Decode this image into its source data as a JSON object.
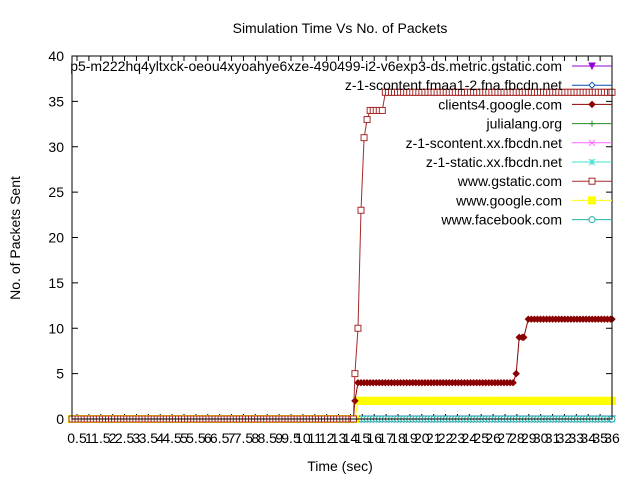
{
  "chart_data": {
    "type": "line",
    "title": "Simulation Time Vs No. of Packets",
    "xlabel": "Time (sec)",
    "ylabel": "No. of Packets Sent",
    "xlim": [
      0.5,
      36
    ],
    "ylim": [
      0,
      40
    ],
    "yticks": [
      0,
      5,
      10,
      15,
      20,
      25,
      30,
      35,
      40
    ],
    "xtick_labels": [
      "0.5",
      "1",
      "1.5",
      "2",
      "2.5",
      "3",
      "3.5",
      "4",
      "4.5",
      "5",
      "5.5",
      "6",
      "6.5",
      "7",
      "7.5",
      "8",
      "8.5",
      "9",
      "9.5",
      "10",
      "11",
      "12",
      "13",
      "14",
      "15",
      "16",
      "17",
      "18",
      "19",
      "20",
      "21",
      "22",
      "23",
      "24",
      "25",
      "26",
      "27",
      "28",
      "29",
      "30",
      "31",
      "32",
      "33",
      "34",
      "35",
      "36"
    ],
    "legend_position": "top-right",
    "grid": false,
    "series": [
      {
        "name": "p5-m222hq4yltxck-oeou4xyoahye6xze-490499-i2-v6exp3-ds.metric.gstatic.com",
        "color": "#9400d3",
        "marker": "triangle-down",
        "points": [
          [
            0.5,
            0
          ],
          [
            36,
            0
          ]
        ]
      },
      {
        "name": "z-1-scontent.fmaa1-2.fna.fbcdn.net",
        "color": "#0050b0",
        "marker": "diamond-open",
        "points": [
          [
            0.5,
            0
          ],
          [
            36,
            0
          ]
        ]
      },
      {
        "name": "clients4.google.com",
        "color": "#8b0000",
        "marker": "diamond-filled",
        "points": [
          [
            0.5,
            0
          ],
          [
            19.0,
            0
          ],
          [
            19.1,
            2
          ],
          [
            19.3,
            4
          ],
          [
            29.5,
            4
          ],
          [
            29.7,
            5
          ],
          [
            29.9,
            9
          ],
          [
            30.2,
            9
          ],
          [
            30.5,
            11
          ],
          [
            36,
            11
          ]
        ]
      },
      {
        "name": "julialang.org",
        "color": "#228b22",
        "marker": "plus",
        "points": [
          [
            0.5,
            0
          ],
          [
            36,
            0
          ]
        ]
      },
      {
        "name": "z-1-scontent.xx.fbcdn.net",
        "color": "#ff66ff",
        "marker": "cross",
        "points": [
          [
            0.5,
            0
          ],
          [
            36,
            0
          ]
        ]
      },
      {
        "name": "z-1-static.xx.fbcdn.net",
        "color": "#40e0d0",
        "marker": "star",
        "points": [
          [
            0.5,
            0
          ],
          [
            36,
            0
          ]
        ]
      },
      {
        "name": "www.gstatic.com",
        "color": "#a52a2a",
        "marker": "square-open",
        "points": [
          [
            0.5,
            0
          ],
          [
            19.0,
            0
          ],
          [
            19.1,
            5
          ],
          [
            19.3,
            10
          ],
          [
            19.5,
            23
          ],
          [
            19.7,
            31
          ],
          [
            19.9,
            33
          ],
          [
            20.1,
            34
          ],
          [
            20.3,
            34
          ],
          [
            20.5,
            34
          ],
          [
            20.7,
            34
          ],
          [
            20.9,
            34
          ],
          [
            21.1,
            36
          ],
          [
            36,
            36
          ]
        ]
      },
      {
        "name": "www.google.com",
        "color": "#ffff00",
        "marker": "square-filled",
        "points": [
          [
            0.5,
            0
          ],
          [
            19.1,
            0
          ],
          [
            19.3,
            2
          ],
          [
            36,
            2
          ]
        ]
      },
      {
        "name": "www.facebook.com",
        "color": "#20b2aa",
        "marker": "circle-open",
        "points": [
          [
            0.5,
            0
          ],
          [
            36,
            0
          ]
        ]
      }
    ]
  }
}
